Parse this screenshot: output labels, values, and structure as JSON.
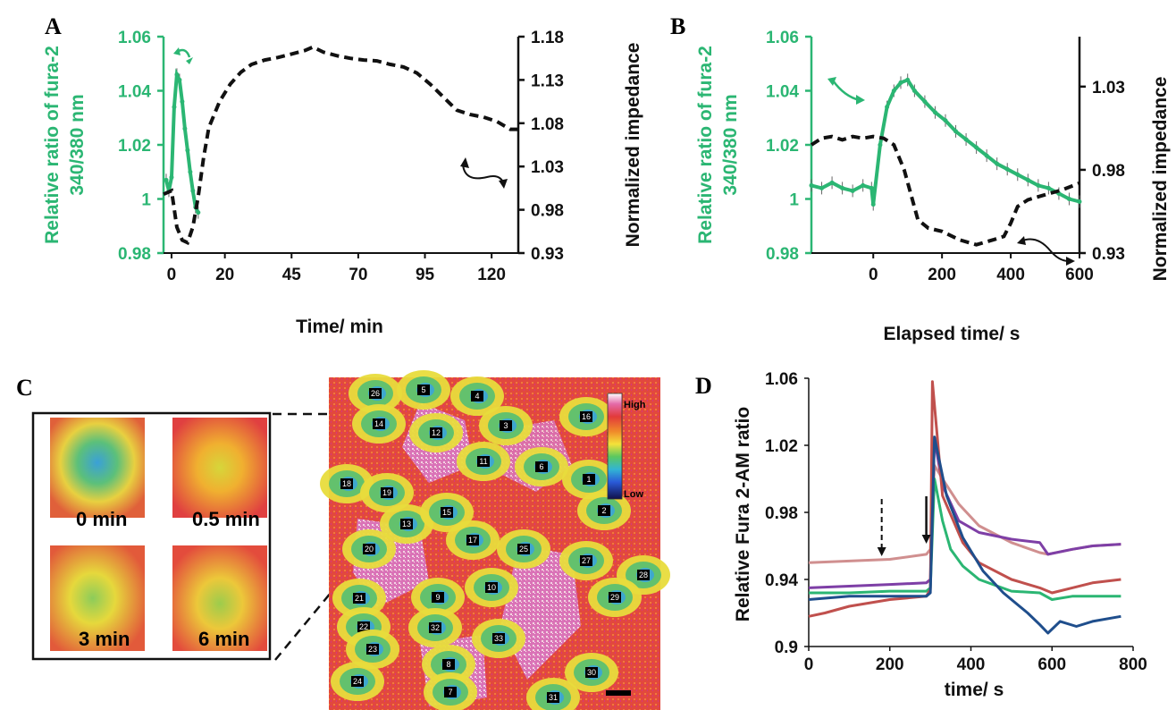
{
  "colors": {
    "green": "#2bb673",
    "black": "#111111",
    "traceD": [
      "#d08f8f",
      "#7e3fa6",
      "#2bb673",
      "#c0504d",
      "#1f4e8c"
    ]
  },
  "panels": {
    "A": "A",
    "B": "B",
    "C": "C",
    "D": "D"
  },
  "chart_data": [
    {
      "type": "line",
      "panel": "A",
      "xlabel": "Time/ min",
      "ylabel_left": [
        "Relative ratio of fura-2",
        "340/380 nm"
      ],
      "ylabel_right": "Normalized impedance",
      "xticks": [
        "0",
        "20",
        "45",
        "70",
        "95",
        "120"
      ],
      "xtick_values": [
        0,
        20,
        45,
        70,
        95,
        120
      ],
      "xlim": [
        -3,
        130
      ],
      "yticks_left": [
        "0.98",
        "1",
        "1.02",
        "1.04",
        "1.06"
      ],
      "ylim_left": [
        0.98,
        1.06
      ],
      "yticks_right": [
        "0.93",
        "0.98",
        "1.03",
        "1.08",
        "1.13",
        "1.18"
      ],
      "ylim_right": [
        0.93,
        1.18
      ],
      "series": [
        {
          "axis": "left",
          "style": "green-errorbars",
          "x": [
            -2,
            -1,
            0,
            1,
            2,
            3,
            4,
            5,
            6,
            7,
            8,
            9,
            10
          ],
          "y": [
            1.007,
            1.003,
            1.008,
            1.034,
            1.046,
            1.044,
            1.036,
            1.026,
            1.018,
            1.01,
            1.003,
            0.997,
            0.995
          ]
        },
        {
          "axis": "right",
          "style": "black-dashed",
          "x": [
            -3,
            0,
            2,
            4,
            6,
            8,
            10,
            12,
            14,
            18,
            22,
            26,
            30,
            35,
            40,
            45,
            50,
            53,
            57,
            62,
            67,
            72,
            77,
            82,
            87,
            92,
            97,
            102,
            107,
            112,
            117,
            122,
            127,
            130
          ],
          "y": [
            0.998,
            1.002,
            0.96,
            0.945,
            0.942,
            0.96,
            0.995,
            1.04,
            1.075,
            1.105,
            1.125,
            1.139,
            1.148,
            1.153,
            1.156,
            1.16,
            1.164,
            1.168,
            1.162,
            1.158,
            1.155,
            1.153,
            1.152,
            1.148,
            1.145,
            1.138,
            1.125,
            1.11,
            1.095,
            1.09,
            1.087,
            1.082,
            1.073,
            1.073
          ]
        }
      ]
    },
    {
      "type": "line",
      "panel": "B",
      "xlabel": "Elapsed time/ s",
      "ylabel_left": [
        "Relative ratio of fura-2",
        "340/380 nm"
      ],
      "ylabel_right": "Normalized impedance",
      "xticks": [
        "0",
        "200",
        "400",
        "600"
      ],
      "xtick_values": [
        0,
        200,
        400,
        600
      ],
      "xlim": [
        -180,
        600
      ],
      "yticks_left": [
        "0.98",
        "1",
        "1.02",
        "1.04",
        "1.06"
      ],
      "ylim_left": [
        0.98,
        1.06
      ],
      "yticks_right": [
        "0.93",
        "0.98",
        "1.03"
      ],
      "ylim_right": [
        0.93,
        1.06
      ],
      "series": [
        {
          "axis": "left",
          "style": "green-errorbars",
          "x": [
            -180,
            -150,
            -120,
            -90,
            -60,
            -30,
            -5,
            0,
            20,
            40,
            60,
            80,
            100,
            120,
            150,
            180,
            210,
            240,
            270,
            300,
            330,
            360,
            390,
            420,
            450,
            480,
            510,
            540,
            570,
            600
          ],
          "y": [
            1.005,
            1.004,
            1.006,
            1.004,
            1.003,
            1.005,
            1.004,
            0.998,
            1.02,
            1.034,
            1.04,
            1.043,
            1.044,
            1.04,
            1.036,
            1.032,
            1.029,
            1.025,
            1.022,
            1.019,
            1.016,
            1.013,
            1.011,
            1.009,
            1.007,
            1.005,
            1.004,
            1.002,
            1.0,
            0.999
          ]
        },
        {
          "axis": "right",
          "style": "black-dashed",
          "x": [
            -180,
            -150,
            -120,
            -90,
            -60,
            -30,
            0,
            30,
            60,
            90,
            110,
            130,
            160,
            200,
            250,
            300,
            350,
            380,
            400,
            420,
            450,
            500,
            550,
            600
          ],
          "y": [
            0.995,
            0.999,
            1.0,
            0.998,
            1.0,
            0.999,
            1.0,
            0.999,
            0.995,
            0.98,
            0.965,
            0.95,
            0.945,
            0.943,
            0.938,
            0.935,
            0.938,
            0.94,
            0.948,
            0.958,
            0.962,
            0.965,
            0.968,
            0.972
          ]
        }
      ]
    },
    {
      "type": "line",
      "panel": "D",
      "xlabel": "time/ s",
      "ylabel": "Relative Fura 2-AM ratio",
      "xticks": [
        "0",
        "200",
        "400",
        "600",
        "800"
      ],
      "xtick_values": [
        0,
        200,
        400,
        600,
        800
      ],
      "xlim": [
        0,
        800
      ],
      "yticks": [
        "0.9",
        "0.94",
        "0.98",
        "1.02",
        "1.06"
      ],
      "ytick_values": [
        0.9,
        0.94,
        0.98,
        1.02,
        1.06
      ],
      "ylim": [
        0.9,
        1.06
      ],
      "annotations": [
        {
          "type": "dashed-arrow",
          "x": 180
        },
        {
          "type": "solid-arrow",
          "x": 290
        }
      ],
      "series": [
        {
          "color": "#d08f8f",
          "x": [
            0,
            100,
            200,
            290,
            300,
            310,
            330,
            370,
            420,
            500,
            570,
            590,
            650,
            700,
            770
          ],
          "y": [
            0.95,
            0.951,
            0.952,
            0.955,
            0.958,
            1.008,
            1.0,
            0.985,
            0.972,
            0.962,
            0.956,
            0.955,
            0.958,
            0.96,
            0.961
          ]
        },
        {
          "color": "#7e3fa6",
          "x": [
            0,
            100,
            200,
            290,
            300,
            310,
            330,
            370,
            420,
            500,
            570,
            590,
            650,
            700,
            770
          ],
          "y": [
            0.935,
            0.936,
            0.937,
            0.938,
            0.94,
            1.024,
            0.996,
            0.975,
            0.968,
            0.964,
            0.962,
            0.955,
            0.958,
            0.96,
            0.961
          ]
        },
        {
          "color": "#2bb673",
          "x": [
            0,
            100,
            200,
            290,
            300,
            310,
            330,
            350,
            380,
            420,
            500,
            570,
            600,
            650,
            700,
            770
          ],
          "y": [
            0.932,
            0.932,
            0.933,
            0.933,
            0.935,
            1.0,
            0.975,
            0.958,
            0.948,
            0.94,
            0.933,
            0.932,
            0.928,
            0.93,
            0.93,
            0.93
          ]
        },
        {
          "color": "#c0504d",
          "x": [
            0,
            40,
            100,
            200,
            290,
            300,
            305,
            330,
            380,
            420,
            500,
            570,
            600,
            650,
            700,
            770
          ],
          "y": [
            0.918,
            0.92,
            0.924,
            0.928,
            0.93,
            0.934,
            1.058,
            0.99,
            0.962,
            0.95,
            0.94,
            0.935,
            0.932,
            0.935,
            0.938,
            0.94
          ]
        },
        {
          "color": "#1f4e8c",
          "x": [
            0,
            100,
            200,
            290,
            300,
            310,
            340,
            380,
            430,
            480,
            540,
            570,
            590,
            620,
            660,
            700,
            770
          ],
          "y": [
            0.928,
            0.93,
            0.93,
            0.93,
            0.932,
            1.025,
            0.99,
            0.965,
            0.945,
            0.932,
            0.92,
            0.913,
            0.908,
            0.915,
            0.912,
            0.915,
            0.918
          ]
        }
      ]
    }
  ],
  "imageC": {
    "insets": [
      "0 min",
      "0.5 min",
      "3 min",
      "6 min"
    ],
    "colorbar": {
      "high": "High",
      "low": "Low"
    },
    "cells": [
      "26",
      "5",
      "4",
      "14",
      "12",
      "3",
      "16",
      "11",
      "6",
      "18",
      "19",
      "1",
      "13",
      "15",
      "2",
      "20",
      "17",
      "25",
      "27",
      "28",
      "10",
      "9",
      "29",
      "21",
      "32",
      "22",
      "33",
      "23",
      "8",
      "24",
      "7",
      "30",
      "31"
    ]
  }
}
